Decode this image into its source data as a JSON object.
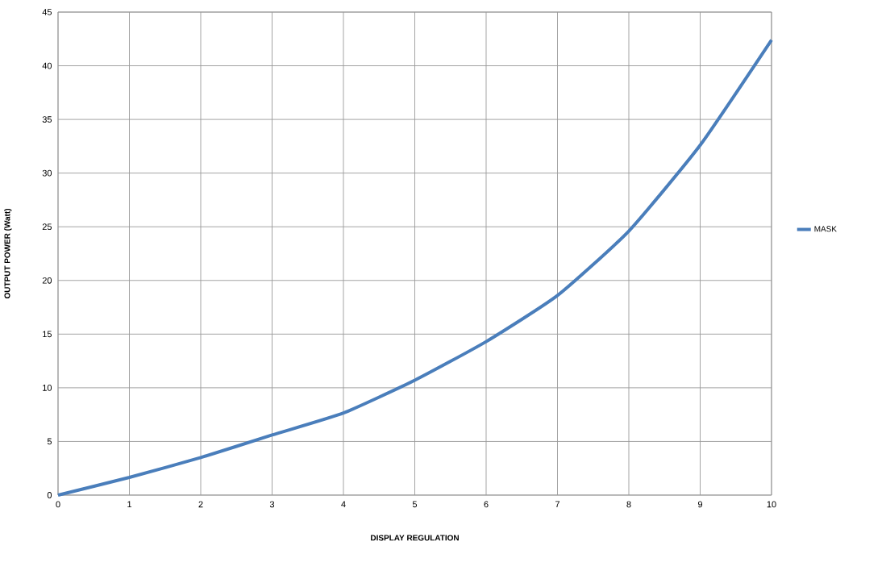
{
  "chart_data": {
    "type": "line",
    "xlabel": "DISPLAY REGULATION",
    "ylabel": "OUTPUT POWER (Watt)",
    "x": [
      0,
      1,
      2,
      3,
      4,
      5,
      6,
      7,
      8,
      9,
      10
    ],
    "series": [
      {
        "name": "MASK",
        "color": "#4a7ebb",
        "values": [
          0,
          1.65,
          3.5,
          5.6,
          7.65,
          10.7,
          14.3,
          18.6,
          24.6,
          32.6,
          42.4
        ]
      }
    ],
    "xlim": [
      0,
      10
    ],
    "ylim": [
      0,
      45
    ],
    "xticks": [
      0,
      1,
      2,
      3,
      4,
      5,
      6,
      7,
      8,
      9,
      10
    ],
    "yticks": [
      0,
      5,
      10,
      15,
      20,
      25,
      30,
      35,
      40,
      45
    ],
    "grid": true,
    "legend": "right",
    "marker": "none",
    "line_style": "solid"
  }
}
